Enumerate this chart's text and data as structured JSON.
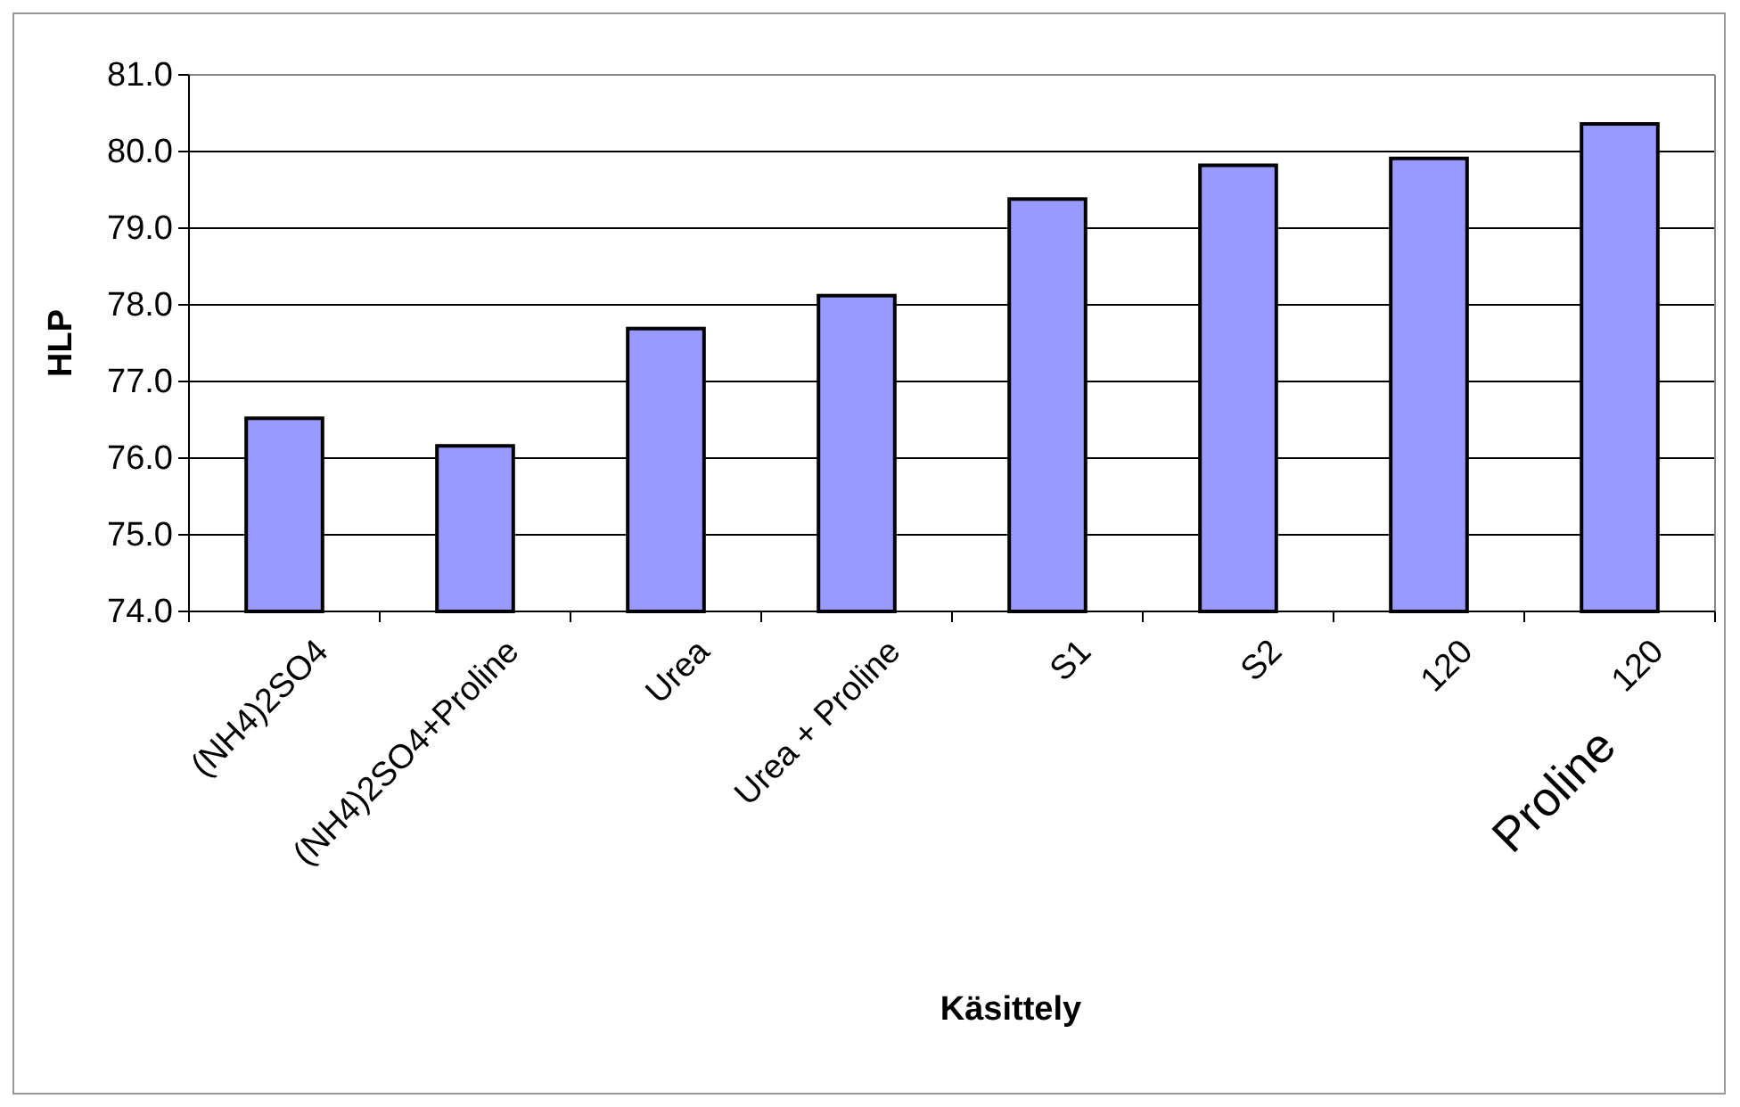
{
  "chart_data": {
    "type": "bar",
    "xlabel": "Käsittely",
    "ylabel": "HLP",
    "categories": [
      "(NH4)2SO4",
      "(NH4)2SO4+Proline",
      "Urea",
      "Urea + Proline",
      "S1",
      "S2",
      "120",
      "120"
    ],
    "values": [
      76.52,
      76.16,
      77.69,
      78.12,
      79.38,
      79.82,
      79.91,
      80.36
    ],
    "color": "#9999ff",
    "ylim": [
      74,
      81
    ],
    "yticks": [
      {
        "value": 74,
        "label": "74.0"
      },
      {
        "value": 75,
        "label": "75.0"
      },
      {
        "value": 76,
        "label": "76.0"
      },
      {
        "value": 77,
        "label": "77.0"
      },
      {
        "value": 78,
        "label": "78.0"
      },
      {
        "value": 79,
        "label": "79.0"
      },
      {
        "value": 80,
        "label": "80.0"
      },
      {
        "value": 81,
        "label": "81.0"
      }
    ],
    "grid": "y",
    "annotations": [
      "Proline"
    ]
  }
}
